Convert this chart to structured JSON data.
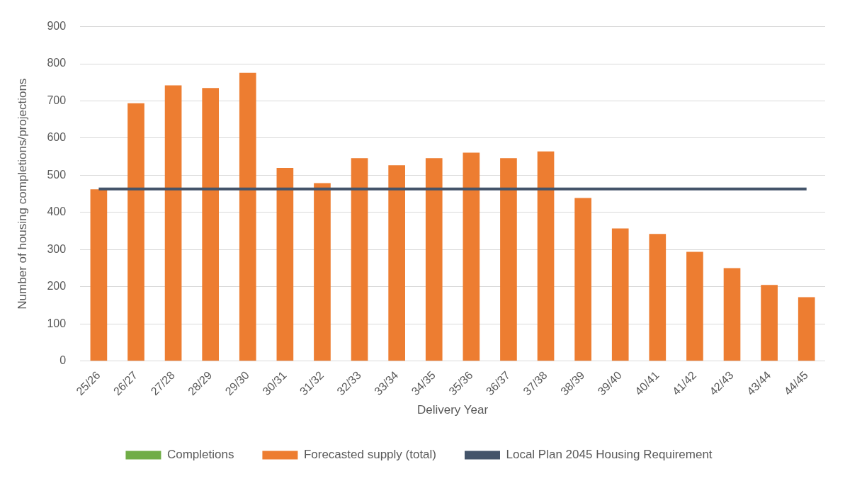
{
  "chart_data": {
    "type": "bar",
    "xlabel": "Delivery Year",
    "ylabel": "Number of housing completions/projections",
    "categories": [
      "25/26",
      "26/27",
      "27/28",
      "28/29",
      "29/30",
      "30/31",
      "31/32",
      "32/33",
      "33/34",
      "34/35",
      "35/36",
      "36/37",
      "37/38",
      "38/39",
      "39/40",
      "40/41",
      "41/42",
      "42/43",
      "43/44",
      "44/45"
    ],
    "series": [
      {
        "name": "Completions",
        "color": "#70ad47",
        "values": [
          null,
          null,
          null,
          null,
          null,
          null,
          null,
          null,
          null,
          null,
          null,
          null,
          null,
          null,
          null,
          null,
          null,
          null,
          null,
          null
        ]
      },
      {
        "name": "Forecasted supply (total)",
        "color": "#ed7d31",
        "values": [
          462,
          694,
          742,
          735,
          776,
          520,
          479,
          546,
          527,
          546,
          561,
          546,
          564,
          439,
          357,
          342,
          294,
          250,
          205,
          172
        ]
      },
      {
        "name": "Local Plan 2045 Housing Requirement",
        "type": "line",
        "color": "#44546a",
        "values": [
          463,
          463,
          463,
          463,
          463,
          463,
          463,
          463,
          463,
          463,
          463,
          463,
          463,
          463,
          463,
          463,
          463,
          463,
          463,
          463
        ]
      }
    ],
    "ylim": [
      0,
      900
    ],
    "yticks": [
      0,
      100,
      200,
      300,
      400,
      500,
      600,
      700,
      800,
      900
    ],
    "grid": "y",
    "legend": "bottom",
    "marker": "none"
  }
}
